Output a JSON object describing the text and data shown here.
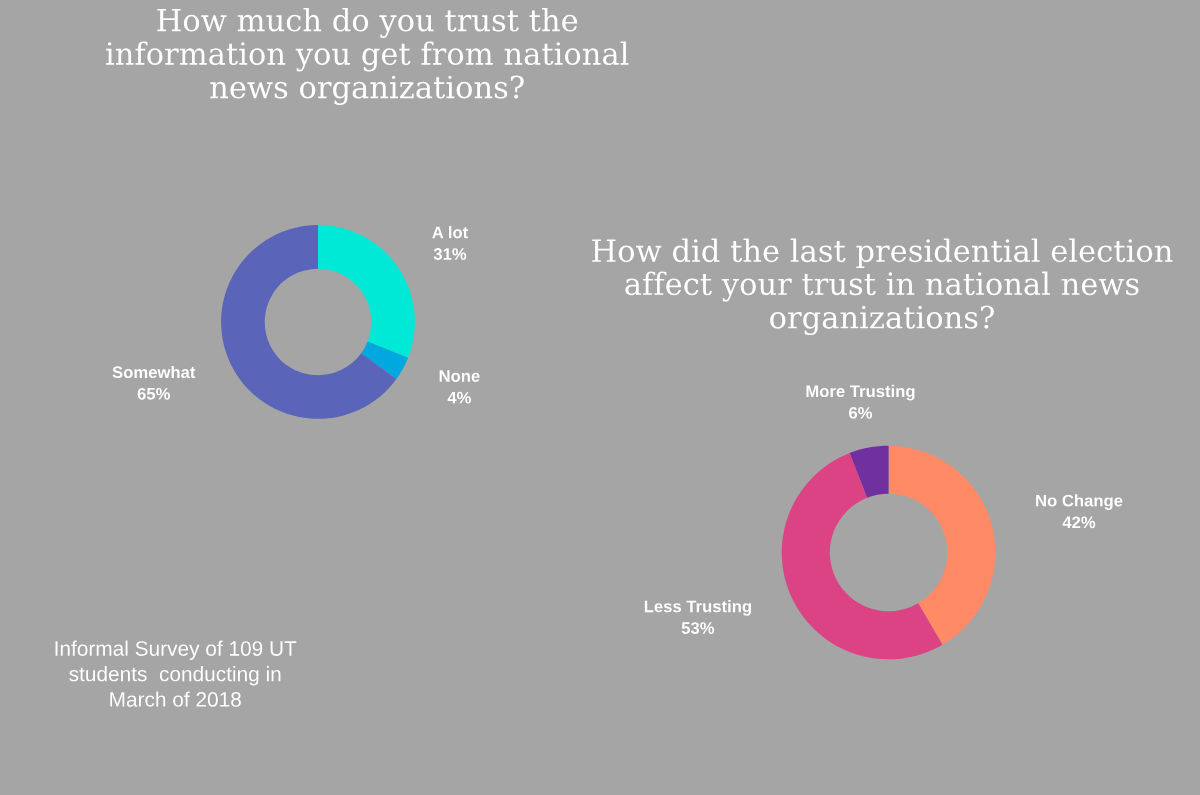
{
  "chart_data": [
    {
      "type": "donut",
      "title": "How much do you trust the\ninformation you get from national\nnews organizations?",
      "categories": [
        "A lot",
        "None",
        "Somewhat"
      ],
      "values": [
        31,
        4,
        65
      ],
      "value_labels": [
        "31%",
        "4%",
        "65%"
      ],
      "colors": [
        "#00e8d6",
        "#00a8e0",
        "#5a64b8"
      ],
      "annotations": [
        "Informal Survey of 109 UT\nstudents  conducting in\nMarch of 2018"
      ]
    },
    {
      "type": "donut",
      "title": "How did the last presidential election\naffect your trust in national news\norganizations?",
      "categories": [
        "No Change",
        "Less Trusting",
        "More Trusting"
      ],
      "values": [
        42,
        53,
        6
      ],
      "value_labels": [
        "42%",
        "53%",
        "6%"
      ],
      "colors": [
        "#ff8a65",
        "#dc4384",
        "#7030a0"
      ]
    }
  ]
}
